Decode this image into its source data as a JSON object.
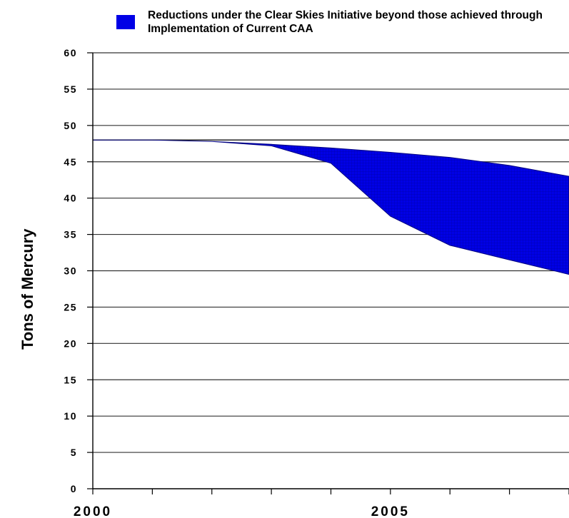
{
  "chart_data": {
    "type": "area",
    "ylabel": "Tons of Mercury",
    "xlabel": "",
    "title": "",
    "ylim": [
      0,
      60
    ],
    "yticks": [
      0,
      5,
      10,
      15,
      20,
      25,
      30,
      35,
      40,
      45,
      50,
      55,
      60
    ],
    "xlim": [
      2000,
      2008
    ],
    "xtick_labels": [
      {
        "x": 2000,
        "label": "2000"
      },
      {
        "x": 2005,
        "label": "2005"
      }
    ],
    "legend": {
      "position": "top",
      "entries": [
        {
          "label": "Reductions under the Clear Skies Initiative beyond those achieved through Implementation of Current CAA",
          "color": "#0000e6"
        }
      ]
    },
    "reference_line": {
      "value": 48
    },
    "series": [
      {
        "upper": {
          "x": [
            2000,
            2001,
            2002,
            2003,
            2004,
            2005,
            2006,
            2007,
            2008
          ],
          "y": [
            48,
            48,
            47.8,
            47.4,
            46.9,
            46.3,
            45.6,
            44.5,
            43
          ]
        },
        "lower": {
          "x": [
            2000,
            2001,
            2002,
            2003,
            2004,
            2005,
            2006,
            2007,
            2008
          ],
          "y": [
            48,
            48,
            47.8,
            47.2,
            44.8,
            37.5,
            33.5,
            31.5,
            29.5
          ]
        }
      }
    ],
    "grid": "horizontal",
    "colors": {
      "fill": "#0000e6",
      "grid": "#333333",
      "axis": "#000000"
    }
  }
}
